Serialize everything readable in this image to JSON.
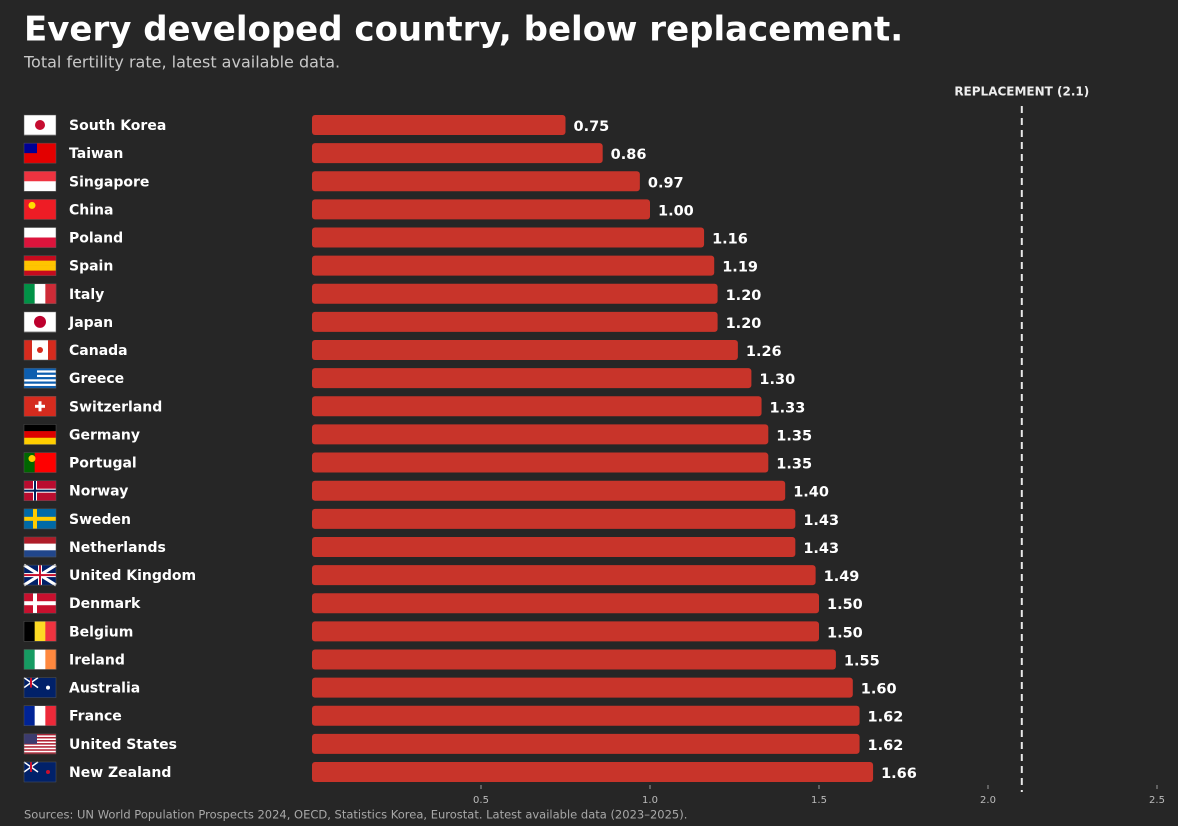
{
  "chart_data": {
    "type": "bar",
    "orientation": "horizontal",
    "title": "Every developed country, below replacement.",
    "subtitle": "Total fertility rate, latest available data.",
    "source": "Sources: UN World Population Prospects 2024, OECD, Statistics Korea, Eurostat. Latest available data (2023–2025).",
    "categories": [
      "South Korea",
      "Taiwan",
      "Singapore",
      "China",
      "Poland",
      "Spain",
      "Italy",
      "Japan",
      "Canada",
      "Greece",
      "Switzerland",
      "Germany",
      "Portugal",
      "Norway",
      "Sweden",
      "Netherlands",
      "United Kingdom",
      "Denmark",
      "Belgium",
      "Ireland",
      "Australia",
      "France",
      "United States",
      "New Zealand"
    ],
    "values": [
      0.75,
      0.86,
      0.97,
      1.0,
      1.16,
      1.19,
      1.2,
      1.2,
      1.26,
      1.3,
      1.33,
      1.35,
      1.35,
      1.4,
      1.43,
      1.43,
      1.49,
      1.5,
      1.5,
      1.55,
      1.6,
      1.62,
      1.62,
      1.66
    ],
    "value_labels": [
      "0.75",
      "0.86",
      "0.97",
      "1.00",
      "1.16",
      "1.19",
      "1.20",
      "1.20",
      "1.26",
      "1.30",
      "1.33",
      "1.35",
      "1.35",
      "1.40",
      "1.43",
      "1.43",
      "1.49",
      "1.50",
      "1.50",
      "1.55",
      "1.60",
      "1.62",
      "1.62",
      "1.66"
    ],
    "color": "#c8342a",
    "xlim": [
      0,
      2.5
    ],
    "xticks": [
      0.5,
      {
        "value": 1.0,
        "label": "1.0"
      },
      1.5,
      {
        "value": 2.0,
        "label": "2.0"
      },
      2.5
    ],
    "reference_line": {
      "value": 2.1,
      "label": "REPLACEMENT (2.1)"
    },
    "grid": false
  }
}
